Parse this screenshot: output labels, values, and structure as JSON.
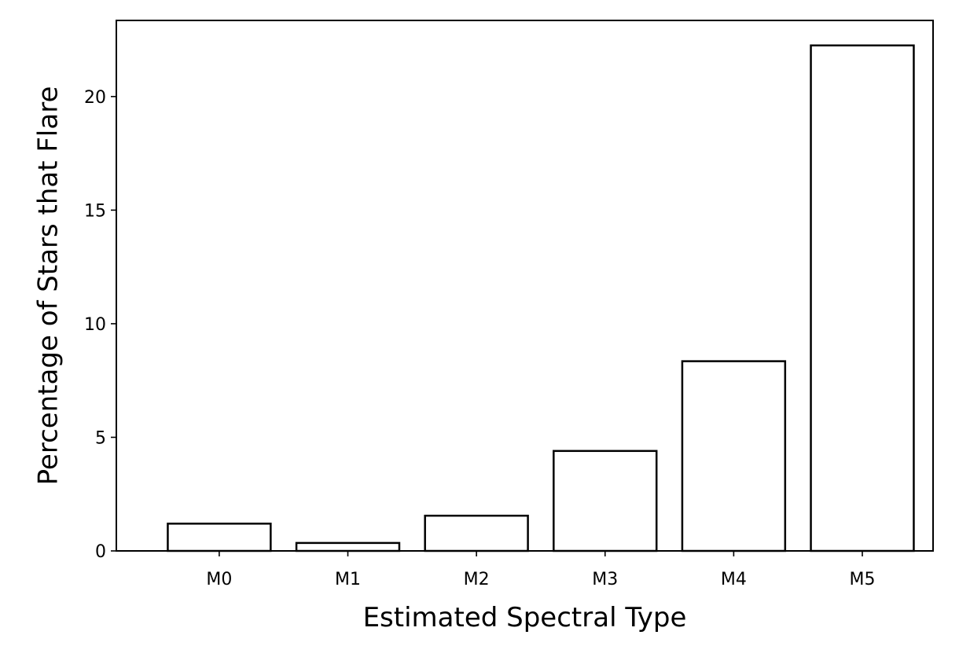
{
  "chart_data": {
    "type": "bar",
    "title": "",
    "xlabel": "Estimated Spectral Type",
    "ylabel": "Percentage of Stars that Flare",
    "categories": [
      "M0",
      "M1",
      "M2",
      "M3",
      "M4",
      "M5"
    ],
    "values": [
      1.2,
      0.35,
      1.55,
      4.4,
      8.35,
      22.25
    ],
    "ylim": [
      0,
      23.35
    ],
    "yticks": [
      0,
      5,
      10,
      15,
      20
    ],
    "ytick_labels": [
      "0",
      "5",
      "10",
      "15",
      "20"
    ],
    "grid": false,
    "legend": "none",
    "bar_fill": "#ffffff",
    "bar_edge": "#000000"
  }
}
